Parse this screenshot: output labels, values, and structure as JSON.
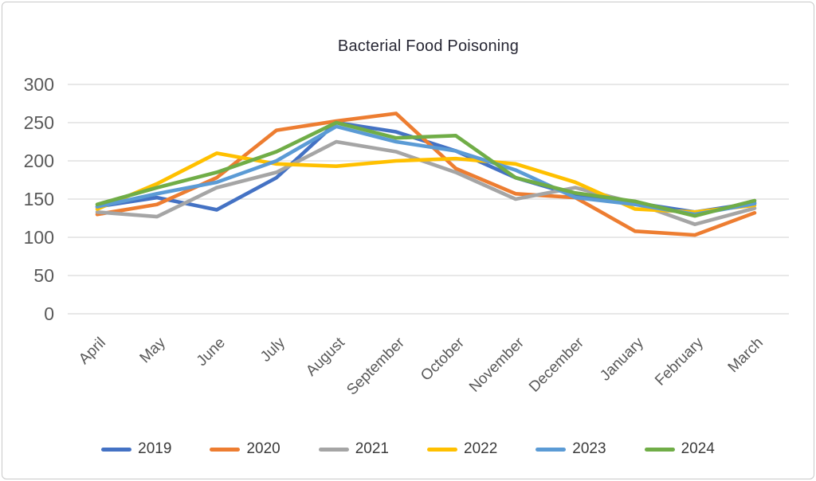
{
  "page": {
    "background": "#ffffff",
    "border_color": "#c9c9c9"
  },
  "chart_data": {
    "type": "line",
    "title": "Bacterial Food Poisoning",
    "title_color": "#262633",
    "axis_label_color": "#595959",
    "grid_color": "#D9D9D9",
    "legend_text_color": "#3b3b3b",
    "grid": true,
    "legend_position": "bottom",
    "xlabel": "",
    "ylabel": "",
    "ylim": [
      0,
      300
    ],
    "yticks": [
      300,
      250,
      200,
      150,
      100,
      50,
      0
    ],
    "categories": [
      "April",
      "May",
      "June",
      "July",
      "August",
      "September",
      "October",
      "November",
      "December",
      "January",
      "February",
      "March"
    ],
    "series": [
      {
        "name": "2019",
        "color": "#4472C4",
        "values": [
          140,
          152,
          136,
          178,
          250,
          238,
          213,
          178,
          155,
          145,
          133,
          145
        ]
      },
      {
        "name": "2020",
        "color": "#ED7D31",
        "values": [
          130,
          143,
          178,
          240,
          252,
          262,
          190,
          157,
          152,
          108,
          103,
          132
        ]
      },
      {
        "name": "2021",
        "color": "#A5A5A5",
        "values": [
          133,
          127,
          165,
          185,
          225,
          212,
          185,
          150,
          165,
          145,
          117,
          138
        ]
      },
      {
        "name": "2022",
        "color": "#FFC000",
        "values": [
          137,
          170,
          210,
          196,
          193,
          200,
          203,
          196,
          172,
          137,
          133,
          142
        ]
      },
      {
        "name": "2023",
        "color": "#5B9BD5",
        "values": [
          140,
          157,
          172,
          200,
          245,
          225,
          213,
          188,
          152,
          143,
          130,
          144
        ]
      },
      {
        "name": "2024",
        "color": "#70AD47",
        "values": [
          143,
          165,
          185,
          212,
          250,
          230,
          233,
          178,
          158,
          147,
          128,
          148
        ]
      }
    ]
  }
}
